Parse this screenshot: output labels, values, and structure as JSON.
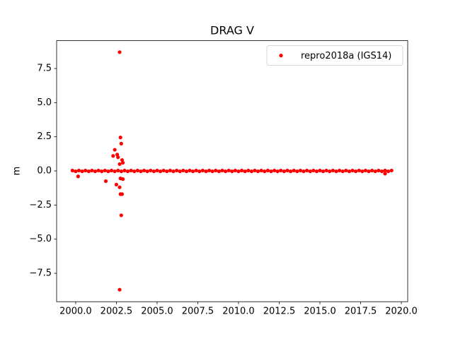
{
  "chart_data": {
    "type": "scatter",
    "title": "DRAG V",
    "ylabel": "m",
    "legend": "upper right",
    "xlim": [
      1998.83,
      2020.39
    ],
    "ylim": [
      -9.58,
      9.54
    ],
    "xticks": [
      {
        "value": 2000,
        "label": "2000.0"
      },
      2002.5,
      {
        "value": 2005,
        "label": "2005.0"
      },
      2007.5,
      {
        "value": 2010,
        "label": "2010.0"
      },
      2012.5,
      {
        "value": 2015,
        "label": "2015.0"
      },
      2017.5,
      {
        "value": 2020,
        "label": "2020.0"
      }
    ],
    "yticks": [
      {
        "value": -7.5,
        "label": "−7.5"
      },
      {
        "value": -5,
        "label": "−5.0"
      },
      {
        "value": -2.5,
        "label": "−2.5"
      },
      {
        "value": 0,
        "label": "0.0"
      },
      2.5,
      {
        "value": 5,
        "label": "5.0"
      },
      7.5
    ],
    "series": [
      {
        "name": "repro2018a (IGS14)",
        "color": "#ff0000",
        "x": [
          1999.8,
          2000,
          2000.2,
          2000.4,
          2000.6,
          2000.8,
          2001,
          2001.2,
          2001.4,
          2001.6,
          2001.8,
          2002,
          2002.2,
          2002.4,
          2002.6,
          2002.8,
          2003,
          2003.2,
          2003.4,
          2003.6,
          2003.8,
          2004,
          2004.2,
          2004.4,
          2004.6,
          2004.8,
          2005,
          2005.2,
          2005.4,
          2005.6,
          2005.8,
          2006,
          2006.2,
          2006.4,
          2006.6,
          2006.8,
          2007,
          2007.2,
          2007.4,
          2007.6,
          2007.8,
          2008,
          2008.2,
          2008.4,
          2008.6,
          2008.8,
          2009,
          2009.2,
          2009.4,
          2009.6,
          2009.8,
          2010,
          2010.2,
          2010.4,
          2010.6,
          2010.8,
          2011,
          2011.2,
          2011.4,
          2011.6,
          2011.8,
          2012,
          2012.2,
          2012.4,
          2012.6,
          2012.8,
          2013,
          2013.2,
          2013.4,
          2013.6,
          2013.8,
          2014,
          2014.2,
          2014.4,
          2014.6,
          2014.8,
          2015,
          2015.2,
          2015.4,
          2015.6,
          2015.8,
          2016,
          2016.2,
          2016.4,
          2016.6,
          2016.8,
          2017,
          2017.2,
          2017.4,
          2017.6,
          2017.8,
          2018,
          2018.2,
          2018.4,
          2018.6,
          2018.8,
          2019,
          2019.2,
          2019.4,
          2002.7,
          2002.7,
          2002.75,
          2002.8,
          2002.4,
          2002.3,
          2002.55,
          2002.6,
          2002.85,
          2002.9,
          2002.7,
          2002.5,
          2002.7,
          2002.75,
          2002.85,
          2002.8,
          2001.85,
          2000.15,
          2002.75,
          2002.9,
          2019.0
        ],
        "values": [
          0.03,
          -0.03,
          0.03,
          -0.03,
          0.03,
          -0.03,
          0.03,
          -0.03,
          0.03,
          -0.03,
          0.03,
          -0.03,
          0.03,
          -0.03,
          0.03,
          -0.03,
          0.03,
          -0.03,
          0.03,
          -0.03,
          0.03,
          -0.03,
          0.03,
          -0.03,
          0.03,
          -0.03,
          0.03,
          -0.03,
          0.03,
          -0.03,
          0.03,
          -0.03,
          0.03,
          -0.03,
          0.03,
          -0.03,
          0.03,
          -0.03,
          0.03,
          -0.03,
          0.03,
          -0.03,
          0.03,
          -0.03,
          0.03,
          -0.03,
          0.03,
          -0.03,
          0.03,
          -0.03,
          0.03,
          -0.03,
          0.03,
          -0.03,
          0.03,
          -0.03,
          0.03,
          -0.03,
          0.03,
          -0.03,
          0.03,
          -0.03,
          0.03,
          -0.03,
          0.03,
          -0.03,
          0.03,
          -0.03,
          0.03,
          -0.03,
          0.03,
          -0.03,
          0.03,
          -0.03,
          0.03,
          -0.03,
          0.03,
          -0.03,
          0.03,
          -0.03,
          0.03,
          -0.03,
          0.03,
          -0.03,
          0.03,
          -0.03,
          0.03,
          -0.03,
          0.03,
          -0.03,
          0.03,
          -0.03,
          0.03,
          -0.03,
          0.03,
          -0.03,
          0.03,
          -0.03,
          0.03,
          8.7,
          -8.7,
          2.45,
          2.0,
          1.55,
          1.1,
          1.2,
          1.0,
          0.8,
          0.6,
          0.5,
          -1.0,
          -1.2,
          -1.7,
          -1.7,
          -3.25,
          -0.75,
          -0.4,
          -0.55,
          -0.6,
          -0.2
        ]
      }
    ]
  }
}
